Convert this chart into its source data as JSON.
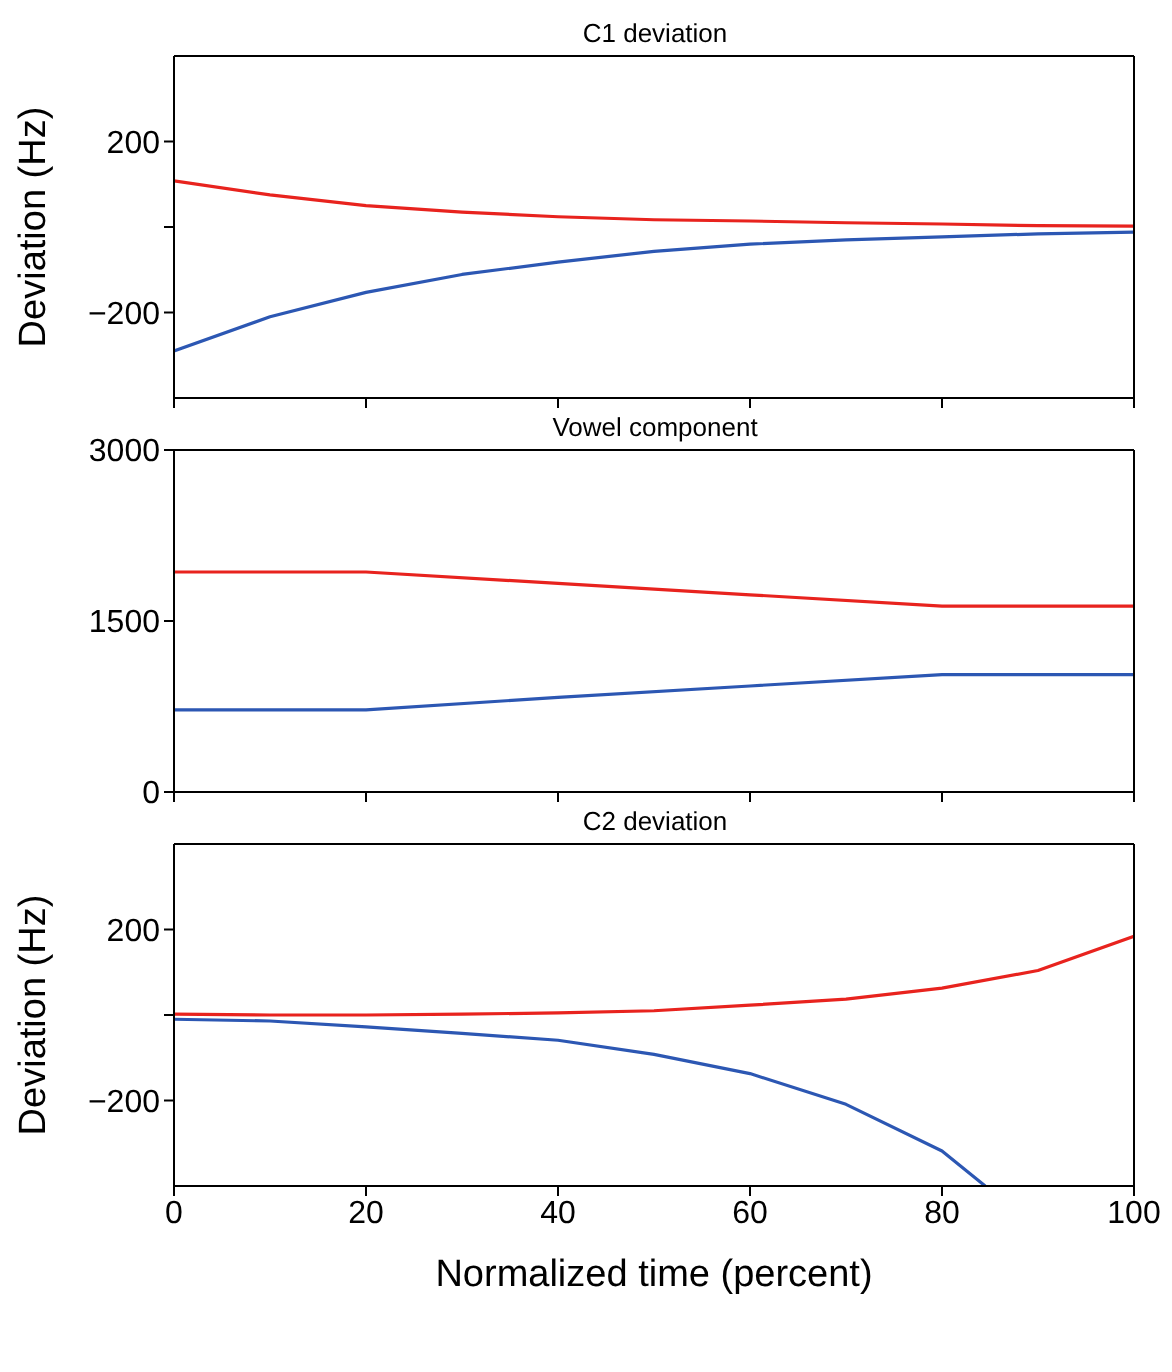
{
  "chart_data": [
    {
      "type": "line",
      "title": "C1 deviation",
      "ylabel": "Deviation (Hz)",
      "xlim": [
        0,
        100
      ],
      "xticks": [
        0,
        20,
        40,
        60,
        80,
        100
      ],
      "ylim": [
        -400,
        400
      ],
      "yticks": [
        -200,
        {
          "value": 0,
          "label": null
        },
        200
      ],
      "tick_labels": "y",
      "series": [
        {
          "color": "#e8231e",
          "x": [
            0,
            10,
            20,
            30,
            40,
            50,
            60,
            70,
            80,
            90,
            100
          ],
          "values": [
            108,
            75,
            50,
            35,
            24,
            17,
            14,
            10,
            7,
            3,
            2
          ]
        },
        {
          "color": "#2c57b3",
          "x": [
            0,
            10,
            20,
            30,
            40,
            50,
            60,
            70,
            80,
            90,
            100
          ],
          "values": [
            -290,
            -210,
            -153,
            -111,
            -82,
            -57,
            -40,
            -30,
            -23,
            -16,
            -12
          ]
        }
      ]
    },
    {
      "type": "line",
      "title": "Vowel component",
      "xlim": [
        0,
        100
      ],
      "xticks": [
        0,
        20,
        40,
        60,
        80,
        100
      ],
      "ylim": [
        0,
        3000
      ],
      "yticks": [
        0,
        1500,
        3000
      ],
      "tick_labels": "y",
      "series": [
        {
          "color": "#e8231e",
          "x": [
            0,
            20,
            40,
            60,
            80,
            100
          ],
          "values": [
            1930,
            1930,
            1830,
            1730,
            1630,
            1630
          ]
        },
        {
          "color": "#2c57b3",
          "x": [
            0,
            20,
            40,
            60,
            80,
            100
          ],
          "values": [
            720,
            720,
            830,
            930,
            1030,
            1030
          ]
        }
      ]
    },
    {
      "type": "line",
      "title": "C2 deviation",
      "xlabel": "Normalized time (percent)",
      "ylabel": "Deviation (Hz)",
      "xlim": [
        0,
        100
      ],
      "xticks": [
        0,
        20,
        40,
        60,
        80,
        100
      ],
      "ylim": [
        -400,
        400
      ],
      "yticks": [
        -200,
        {
          "value": 0,
          "label": null
        },
        200
      ],
      "series": [
        {
          "color": "#e8231e",
          "x": [
            0,
            10,
            20,
            30,
            40,
            50,
            60,
            70,
            80,
            90,
            100
          ],
          "values": [
            2,
            0,
            0,
            2,
            5,
            10,
            23,
            37,
            63,
            104,
            184
          ]
        },
        {
          "color": "#2c57b3",
          "x": [
            0,
            10,
            20,
            30,
            40,
            50,
            60,
            70,
            80,
            84.5
          ],
          "values": [
            -10,
            -14,
            -28,
            -43,
            -59,
            -92,
            -137,
            -209,
            -318,
            -400
          ]
        }
      ]
    }
  ]
}
